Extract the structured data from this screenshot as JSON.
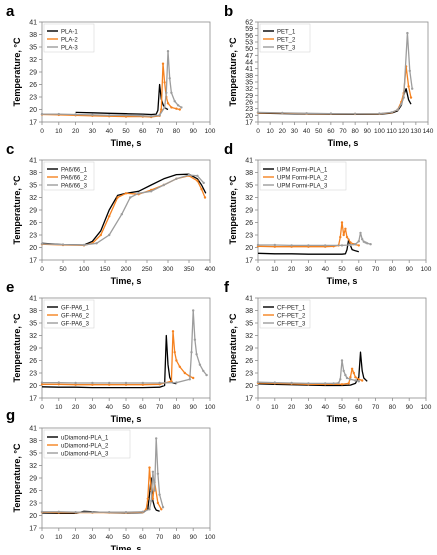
{
  "chart_data": [
    {
      "type": "line",
      "panel_label": "a",
      "xlabel": "Time, s",
      "ylabel": "Temperature, °C",
      "xlim": [
        0,
        100
      ],
      "xticks": [
        0,
        10,
        20,
        30,
        40,
        50,
        60,
        70,
        80,
        90,
        100
      ],
      "ylim": [
        17,
        41
      ],
      "yticks": [
        17,
        20,
        23,
        26,
        29,
        32,
        35,
        38,
        41
      ],
      "legend": "top-left",
      "series": [
        {
          "name": "PLA-1",
          "color": "#000000",
          "x": [
            20,
            30,
            40,
            50,
            60,
            65,
            68,
            69,
            70,
            71,
            72,
            73,
            74,
            75
          ],
          "y": [
            19.3,
            19.2,
            19.1,
            19.0,
            18.9,
            18.8,
            18.9,
            19.8,
            26.0,
            22.5,
            21.2,
            20.5,
            20.2,
            20.0
          ]
        },
        {
          "name": "PLA-2",
          "color": "#f58220",
          "x": [
            0,
            10,
            20,
            30,
            40,
            50,
            60,
            65,
            70,
            71,
            72,
            73,
            74,
            75,
            77,
            80,
            82
          ],
          "y": [
            18.8,
            18.7,
            18.6,
            18.5,
            18.4,
            18.3,
            18.3,
            18.2,
            18.5,
            20.0,
            31.0,
            26.5,
            23.0,
            21.5,
            20.5,
            20.2,
            20.0
          ]
        },
        {
          "name": "PLA-3",
          "color": "#9d9d9d",
          "x": [
            0,
            10,
            20,
            30,
            40,
            50,
            60,
            65,
            70,
            73,
            74,
            75,
            76,
            77,
            79,
            81,
            83
          ],
          "y": [
            18.9,
            18.9,
            18.8,
            18.7,
            18.6,
            18.6,
            18.5,
            18.4,
            18.6,
            20.5,
            24.0,
            34.0,
            27.5,
            24.0,
            22.0,
            21.0,
            20.5
          ]
        }
      ]
    },
    {
      "type": "line",
      "panel_label": "b",
      "xlabel": "Time, s",
      "ylabel": "Temperature, °C",
      "xlim": [
        0,
        140
      ],
      "xticks": [
        0,
        10,
        20,
        30,
        40,
        50,
        60,
        70,
        80,
        90,
        100,
        110,
        120,
        130,
        140
      ],
      "ylim": [
        17,
        62
      ],
      "yticks": [
        17,
        20,
        23,
        26,
        29,
        32,
        35,
        38,
        41,
        44,
        47,
        50,
        53,
        56,
        59,
        62
      ],
      "legend": "top-left",
      "series": [
        {
          "name": "PET_1",
          "color": "#000000",
          "x": [
            0,
            20,
            40,
            60,
            80,
            100,
            110,
            115,
            118,
            120,
            122,
            124,
            126
          ],
          "y": [
            21.0,
            20.8,
            20.6,
            20.5,
            20.4,
            20.5,
            21.0,
            22.0,
            24.5,
            29.0,
            32.0,
            27.0,
            25.0
          ]
        },
        {
          "name": "PET_2",
          "color": "#f58220",
          "x": [
            0,
            20,
            40,
            60,
            80,
            100,
            110,
            115,
            118,
            120,
            122,
            124,
            126
          ],
          "y": [
            21.2,
            21.0,
            20.8,
            20.7,
            20.6,
            20.7,
            21.2,
            22.5,
            26.0,
            30.0,
            42.0,
            33.0,
            28.0
          ]
        },
        {
          "name": "PET_3",
          "color": "#9d9d9d",
          "x": [
            0,
            20,
            40,
            60,
            80,
            100,
            110,
            115,
            118,
            120,
            123,
            125,
            127
          ],
          "y": [
            21.3,
            21.1,
            20.9,
            20.8,
            20.7,
            20.8,
            21.3,
            22.5,
            25.0,
            28.0,
            57.0,
            40.0,
            32.0
          ]
        }
      ]
    },
    {
      "type": "line",
      "panel_label": "c",
      "xlabel": "Time, s",
      "ylabel": "Temperature, °C",
      "xlim": [
        0,
        400
      ],
      "xticks": [
        0,
        50,
        100,
        150,
        200,
        250,
        300,
        350,
        400
      ],
      "ylim": [
        17,
        41
      ],
      "yticks": [
        17,
        20,
        23,
        26,
        29,
        32,
        35,
        38,
        41
      ],
      "legend": "top-left",
      "series": [
        {
          "name": "PA6/66_1",
          "color": "#000000",
          "x": [
            0,
            50,
            100,
            120,
            140,
            160,
            180,
            200,
            230,
            260,
            290,
            320,
            350,
            370,
            380,
            390
          ],
          "y": [
            21.0,
            20.7,
            20.6,
            21.5,
            24.0,
            29.0,
            32.5,
            33.0,
            33.5,
            35.0,
            36.5,
            37.5,
            37.6,
            36.5,
            35.0,
            33.0
          ]
        },
        {
          "name": "PA6/66_2",
          "color": "#f58220",
          "x": [
            0,
            50,
            100,
            120,
            140,
            160,
            180,
            200,
            230,
            260,
            290,
            320,
            350,
            370,
            380,
            388
          ],
          "y": [
            20.8,
            20.6,
            20.5,
            21.0,
            23.0,
            27.5,
            32.0,
            33.0,
            32.8,
            33.8,
            35.0,
            36.5,
            37.2,
            36.0,
            34.0,
            32.0
          ]
        },
        {
          "name": "PA6/66_3",
          "color": "#9d9d9d",
          "x": [
            0,
            50,
            100,
            130,
            160,
            190,
            210,
            230,
            260,
            290,
            320,
            350,
            370,
            385
          ],
          "y": [
            20.9,
            20.7,
            20.6,
            21.0,
            23.0,
            28.0,
            32.0,
            33.0,
            33.5,
            35.0,
            36.5,
            37.4,
            37.2,
            35.5
          ]
        }
      ]
    },
    {
      "type": "line",
      "panel_label": "d",
      "xlabel": "Time, s",
      "ylabel": "Temperature, °C",
      "xlim": [
        0,
        100
      ],
      "xticks": [
        0,
        10,
        20,
        30,
        40,
        50,
        60,
        70,
        80,
        90,
        100
      ],
      "ylim": [
        17,
        41
      ],
      "yticks": [
        17,
        20,
        23,
        26,
        29,
        32,
        35,
        38,
        41
      ],
      "legend": "top-left",
      "series": [
        {
          "name": "UPM Formi-PLA_1",
          "color": "#000000",
          "x": [
            0,
            10,
            20,
            30,
            40,
            50,
            52,
            53,
            54,
            55,
            56,
            58,
            60
          ],
          "y": [
            18.6,
            18.5,
            18.5,
            18.4,
            18.4,
            18.4,
            18.5,
            19.5,
            22.0,
            20.5,
            19.5,
            19.2,
            19.0
          ]
        },
        {
          "name": "UPM Formi-PLA_2",
          "color": "#f58220",
          "x": [
            0,
            10,
            20,
            30,
            40,
            45,
            48,
            49,
            50,
            51,
            52,
            53,
            55,
            57,
            60
          ],
          "y": [
            20.3,
            20.2,
            20.2,
            20.2,
            20.2,
            20.3,
            20.5,
            22.5,
            26.0,
            23.0,
            24.5,
            22.5,
            21.2,
            20.8,
            20.5
          ]
        },
        {
          "name": "UPM Formi-PLA_3",
          "color": "#9d9d9d",
          "x": [
            0,
            10,
            20,
            30,
            40,
            50,
            55,
            58,
            60,
            61,
            62,
            63,
            64,
            65,
            67
          ],
          "y": [
            20.6,
            20.6,
            20.5,
            20.5,
            20.5,
            20.5,
            20.6,
            20.8,
            21.5,
            23.5,
            22.0,
            21.4,
            21.2,
            21.0,
            20.8
          ]
        }
      ]
    },
    {
      "type": "line",
      "panel_label": "e",
      "xlabel": "Time, s",
      "ylabel": "Temperature, °C",
      "xlim": [
        0,
        100
      ],
      "xticks": [
        0,
        10,
        20,
        30,
        40,
        50,
        60,
        70,
        80,
        90,
        100
      ],
      "ylim": [
        17,
        41
      ],
      "yticks": [
        17,
        20,
        23,
        26,
        29,
        32,
        35,
        38,
        41
      ],
      "legend": "top-left",
      "series": [
        {
          "name": "GF-PA6_1",
          "color": "#000000",
          "x": [
            0,
            10,
            20,
            30,
            40,
            50,
            60,
            70,
            73,
            74,
            75,
            76,
            77,
            78,
            80
          ],
          "y": [
            19.7,
            19.6,
            19.6,
            19.5,
            19.5,
            19.5,
            19.5,
            19.6,
            20.0,
            32.0,
            25.0,
            22.0,
            21.0,
            20.6,
            20.4
          ]
        },
        {
          "name": "GF-PA6_2",
          "color": "#f58220",
          "x": [
            0,
            10,
            20,
            30,
            40,
            50,
            60,
            70,
            77,
            78,
            79,
            80,
            82,
            85,
            88,
            90
          ],
          "y": [
            20.3,
            20.3,
            20.2,
            20.2,
            20.2,
            20.2,
            20.2,
            20.3,
            21.0,
            33.0,
            28.0,
            26.0,
            24.5,
            23.0,
            22.2,
            21.8
          ]
        },
        {
          "name": "GF-PA6_3",
          "color": "#9d9d9d",
          "x": [
            0,
            10,
            20,
            30,
            40,
            50,
            60,
            70,
            80,
            88,
            89,
            90,
            91,
            92,
            94,
            96,
            98
          ],
          "y": [
            20.7,
            20.7,
            20.6,
            20.6,
            20.6,
            20.6,
            20.6,
            20.6,
            20.7,
            21.5,
            28.0,
            38.0,
            31.0,
            27.5,
            25.0,
            23.5,
            22.5
          ]
        }
      ]
    },
    {
      "type": "line",
      "panel_label": "f",
      "xlabel": "Time, s",
      "ylabel": "Temperature, °C",
      "xlim": [
        0,
        100
      ],
      "xticks": [
        0,
        10,
        20,
        30,
        40,
        50,
        60,
        70,
        80,
        90,
        100
      ],
      "ylim": [
        17,
        41
      ],
      "yticks": [
        17,
        20,
        23,
        26,
        29,
        32,
        35,
        38,
        41
      ],
      "legend": "top-left",
      "series": [
        {
          "name": "CF-PET_1",
          "color": "#000000",
          "x": [
            0,
            10,
            20,
            30,
            40,
            50,
            55,
            58,
            60,
            61,
            62,
            63,
            65
          ],
          "y": [
            20.4,
            20.3,
            20.2,
            20.1,
            20.0,
            20.0,
            20.1,
            20.5,
            22.0,
            28.0,
            23.5,
            21.8,
            21.0
          ]
        },
        {
          "name": "CF-PET_2",
          "color": "#f58220",
          "x": [
            0,
            10,
            20,
            30,
            40,
            50,
            54,
            55,
            56,
            57,
            58,
            60,
            62
          ],
          "y": [
            20.6,
            20.5,
            20.4,
            20.3,
            20.3,
            20.3,
            20.5,
            22.0,
            24.0,
            23.0,
            22.0,
            21.5,
            21.2
          ]
        },
        {
          "name": "CF-PET_3",
          "color": "#9d9d9d",
          "x": [
            0,
            10,
            20,
            30,
            40,
            45,
            48,
            49,
            50,
            51,
            52,
            53,
            55,
            58,
            60
          ],
          "y": [
            20.8,
            20.7,
            20.6,
            20.5,
            20.5,
            20.5,
            20.6,
            21.5,
            26.0,
            23.5,
            22.5,
            21.8,
            21.5,
            21.2,
            21.0
          ]
        }
      ]
    },
    {
      "type": "line",
      "panel_label": "g",
      "xlabel": "Time, s",
      "ylabel": "Temperature, °C",
      "xlim": [
        0,
        100
      ],
      "xticks": [
        0,
        10,
        20,
        30,
        40,
        50,
        60,
        70,
        80,
        90,
        100
      ],
      "ylim": [
        17,
        41
      ],
      "yticks": [
        17,
        20,
        23,
        26,
        29,
        32,
        35,
        38,
        41
      ],
      "legend": "top-left",
      "series": [
        {
          "name": "uDiamond-PLA_1",
          "color": "#000000",
          "x": [
            0,
            10,
            20,
            25,
            30,
            40,
            50,
            60,
            63,
            64,
            65,
            66,
            67,
            68,
            70
          ],
          "y": [
            20.6,
            20.5,
            20.5,
            21.0,
            20.9,
            20.7,
            20.6,
            20.7,
            21.5,
            25.0,
            29.0,
            23.5,
            22.0,
            21.3,
            21.0
          ]
        },
        {
          "name": "uDiamond-PLA_2",
          "color": "#f58220",
          "x": [
            0,
            10,
            20,
            30,
            40,
            50,
            60,
            62,
            63,
            64,
            65,
            66,
            67,
            69,
            71
          ],
          "y": [
            20.8,
            20.7,
            20.7,
            20.7,
            20.7,
            20.7,
            20.8,
            21.5,
            24.0,
            31.5,
            26.0,
            24.0,
            28.0,
            23.0,
            21.5
          ]
        },
        {
          "name": "uDiamond-PLA_3",
          "color": "#9d9d9d",
          "x": [
            0,
            10,
            20,
            30,
            40,
            50,
            60,
            64,
            65,
            66,
            67,
            68,
            69,
            70,
            72
          ],
          "y": [
            20.9,
            20.9,
            20.8,
            20.8,
            20.8,
            20.8,
            20.9,
            21.5,
            23.5,
            30.5,
            26.0,
            38.5,
            30.0,
            25.0,
            22.0
          ]
        }
      ]
    }
  ]
}
